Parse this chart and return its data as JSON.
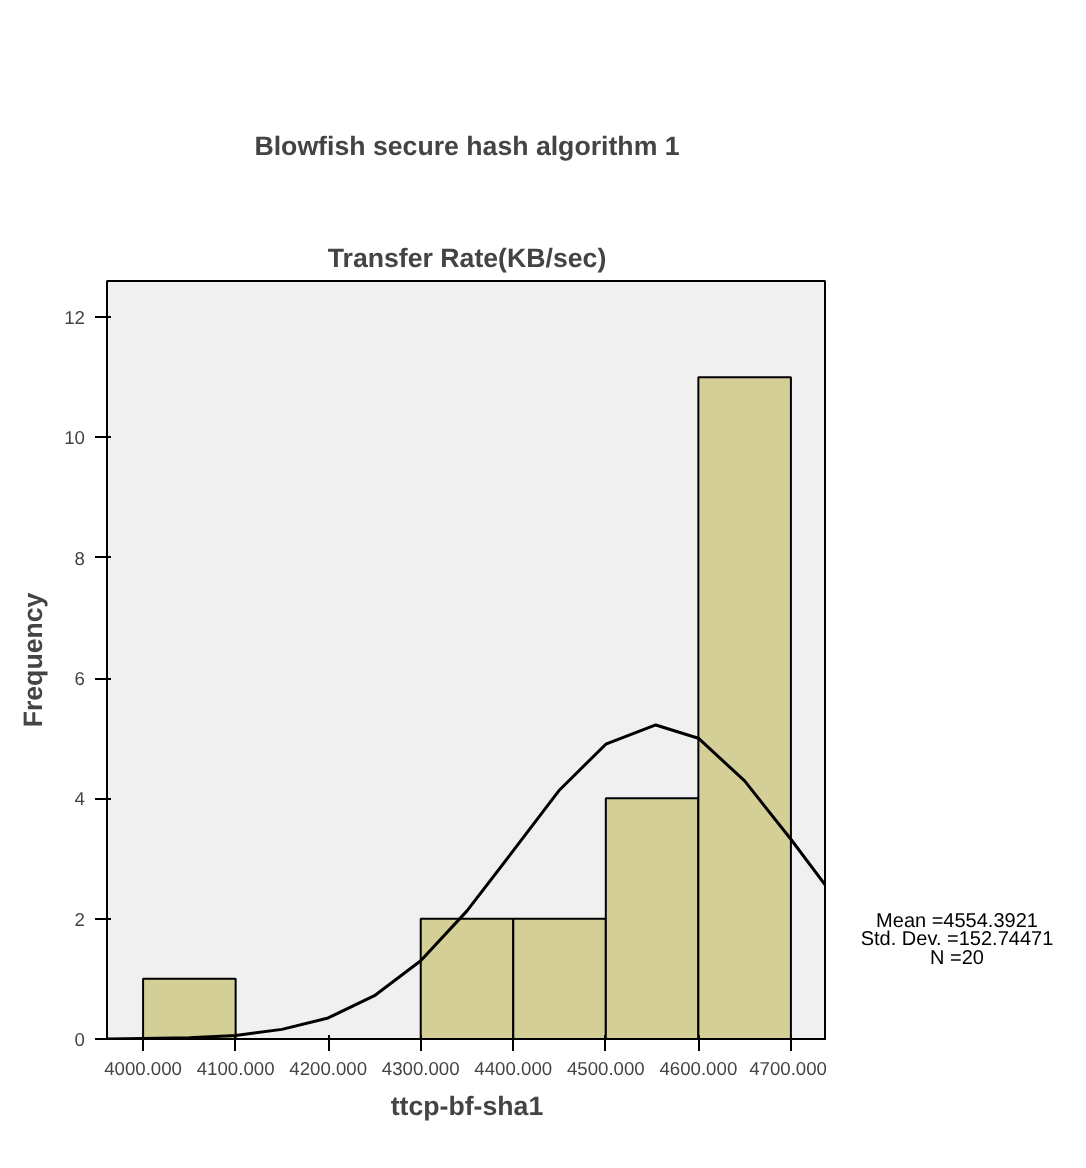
{
  "chart_data": {
    "type": "histogram",
    "title": "Blowfish secure hash algorithm 1",
    "subtitle": "Transfer Rate(KB/sec)",
    "xlabel": "ttcp-bf-sha1",
    "ylabel": "Frequency",
    "bins": [
      4000,
      4100,
      4200,
      4300,
      4400,
      4500,
      4600,
      4700
    ],
    "values": [
      1,
      0,
      0,
      2,
      2,
      4,
      11
    ],
    "color": "#d3cf97",
    "series": [
      {
        "type": "line",
        "color": "#000000",
        "x": [
          3961,
          4000,
          4050,
          4100,
          4150,
          4200,
          4250,
          4300,
          4350,
          4400,
          4450,
          4500,
          4554,
          4600,
          4650,
          4700,
          4739
        ],
        "values": [
          0.0,
          0.01,
          0.02,
          0.06,
          0.16,
          0.35,
          0.72,
          1.3,
          2.13,
          3.13,
          4.14,
          4.9,
          5.22,
          5.0,
          4.29,
          3.32,
          2.52
        ]
      }
    ],
    "xlim": [
      3961,
      4739
    ],
    "ylim": [
      0,
      12.6
    ],
    "xticks": [
      {
        "value": 4000,
        "label": "4000.000"
      },
      {
        "value": 4100,
        "label": "4100.000"
      },
      {
        "value": 4200,
        "label": "4200.000"
      },
      {
        "value": 4300,
        "label": "4300.000"
      },
      {
        "value": 4400,
        "label": "4400.000"
      },
      {
        "value": 4500,
        "label": "4500.000"
      },
      {
        "value": 4600,
        "label": "4600.000"
      },
      {
        "value": 4700,
        "label": "4700.000"
      }
    ],
    "yticks": [
      0,
      2,
      4,
      6,
      8,
      10,
      12
    ],
    "grid": false,
    "annotations": [
      "Mean =4554.3921",
      "Std. Dev. =152.74471",
      "N =20"
    ]
  }
}
